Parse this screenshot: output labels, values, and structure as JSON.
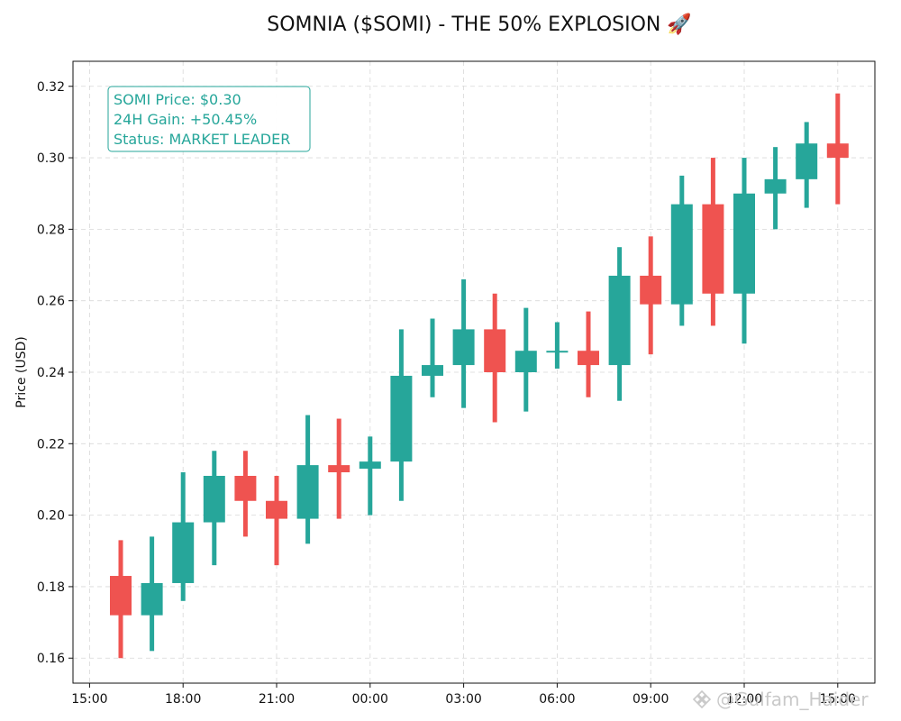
{
  "chart_data": {
    "type": "candlestick",
    "title": "SOMNIA ($SOMI) - THE 50% EXPLOSION 🚀",
    "ylabel": "Price (USD)",
    "xlabel": "",
    "ylim": [
      0.153,
      0.327
    ],
    "y_ticks": [
      "0.16",
      "0.18",
      "0.20",
      "0.22",
      "0.24",
      "0.26",
      "0.28",
      "0.30",
      "0.32"
    ],
    "x_ticks": [
      "15:00",
      "18:00",
      "21:00",
      "00:00",
      "03:00",
      "06:00",
      "09:00",
      "12:00",
      "15:00"
    ],
    "grid": true,
    "colors": {
      "up": "#26a69a",
      "down": "#ef5350"
    },
    "candles": [
      {
        "open": 0.183,
        "high": 0.193,
        "low": 0.16,
        "close": 0.172
      },
      {
        "open": 0.172,
        "high": 0.194,
        "low": 0.162,
        "close": 0.181
      },
      {
        "open": 0.181,
        "high": 0.212,
        "low": 0.176,
        "close": 0.198
      },
      {
        "open": 0.198,
        "high": 0.218,
        "low": 0.186,
        "close": 0.211
      },
      {
        "open": 0.211,
        "high": 0.218,
        "low": 0.194,
        "close": 0.204
      },
      {
        "open": 0.204,
        "high": 0.211,
        "low": 0.186,
        "close": 0.199
      },
      {
        "open": 0.199,
        "high": 0.228,
        "low": 0.192,
        "close": 0.214
      },
      {
        "open": 0.214,
        "high": 0.227,
        "low": 0.199,
        "close": 0.212
      },
      {
        "open": 0.213,
        "high": 0.222,
        "low": 0.2,
        "close": 0.215
      },
      {
        "open": 0.215,
        "high": 0.252,
        "low": 0.204,
        "close": 0.239
      },
      {
        "open": 0.239,
        "high": 0.255,
        "low": 0.233,
        "close": 0.242
      },
      {
        "open": 0.242,
        "high": 0.266,
        "low": 0.23,
        "close": 0.252
      },
      {
        "open": 0.252,
        "high": 0.262,
        "low": 0.226,
        "close": 0.24
      },
      {
        "open": 0.24,
        "high": 0.258,
        "low": 0.229,
        "close": 0.246
      },
      {
        "open": 0.246,
        "high": 0.254,
        "low": 0.241,
        "close": 0.246
      },
      {
        "open": 0.246,
        "high": 0.257,
        "low": 0.233,
        "close": 0.242
      },
      {
        "open": 0.242,
        "high": 0.275,
        "low": 0.232,
        "close": 0.267
      },
      {
        "open": 0.267,
        "high": 0.278,
        "low": 0.245,
        "close": 0.259
      },
      {
        "open": 0.259,
        "high": 0.295,
        "low": 0.253,
        "close": 0.287
      },
      {
        "open": 0.287,
        "high": 0.3,
        "low": 0.253,
        "close": 0.262
      },
      {
        "open": 0.262,
        "high": 0.3,
        "low": 0.248,
        "close": 0.29
      },
      {
        "open": 0.29,
        "high": 0.303,
        "low": 0.28,
        "close": 0.294
      },
      {
        "open": 0.294,
        "high": 0.31,
        "low": 0.286,
        "close": 0.304
      },
      {
        "open": 0.304,
        "high": 0.318,
        "low": 0.287,
        "close": 0.3
      }
    ],
    "info_box": {
      "lines": [
        "SOMI Price: $0.30",
        "24H Gain: +50.45%",
        "Status: MARKET LEADER"
      ],
      "color": "#26a69a"
    }
  },
  "watermark": {
    "text": "@Gulfam_Haider",
    "icon": "binance-logo-icon"
  }
}
